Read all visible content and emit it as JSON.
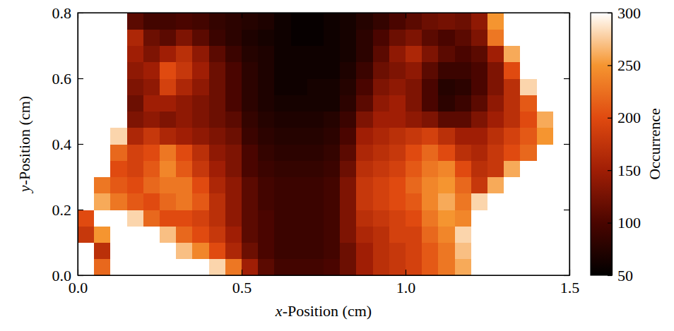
{
  "chart_data": {
    "type": "heatmap",
    "x_label": "x-Position (cm)",
    "y_label": "y-Position (cm)",
    "xlim": [
      0,
      1.5
    ],
    "ylim": [
      0,
      0.8
    ],
    "xticks": [
      {
        "value": 0,
        "label": "0.0"
      },
      0.5,
      {
        "value": 1,
        "label": "1.0"
      },
      1.5
    ],
    "yticks": [
      {
        "value": 0,
        "label": "0.0"
      },
      0.2,
      0.4,
      0.6,
      0.8
    ],
    "x_bins": [
      0,
      0.05,
      0.1,
      0.15,
      0.2,
      0.25,
      0.3,
      0.35,
      0.4,
      0.45,
      0.5,
      0.55,
      0.6,
      0.65,
      0.7,
      0.75,
      0.8,
      0.85,
      0.9,
      0.95,
      1.0,
      1.05,
      1.1,
      1.15,
      1.2,
      1.25,
      1.3,
      1.35,
      1.4,
      1.45,
      1.5
    ],
    "y_bins": [
      0,
      0.05,
      0.1,
      0.15,
      0.2,
      0.25,
      0.3,
      0.35,
      0.4,
      0.45,
      0.5,
      0.55,
      0.6,
      0.65,
      0.7,
      0.75,
      0.8
    ],
    "values": [
      [
        350,
        220,
        350,
        350,
        350,
        350,
        350,
        320,
        280,
        230,
        150,
        110,
        95,
        95,
        95,
        100,
        120,
        150,
        170,
        180,
        190,
        210,
        230,
        260,
        350,
        350,
        350,
        350,
        350,
        350
      ],
      [
        350,
        170,
        350,
        350,
        350,
        320,
        270,
        240,
        200,
        160,
        120,
        100,
        90,
        90,
        90,
        95,
        120,
        150,
        170,
        180,
        190,
        210,
        230,
        270,
        350,
        350,
        350,
        350,
        350,
        350
      ],
      [
        180,
        250,
        350,
        350,
        330,
        270,
        220,
        200,
        180,
        150,
        110,
        100,
        90,
        90,
        90,
        95,
        130,
        160,
        170,
        190,
        190,
        220,
        240,
        280,
        350,
        350,
        350,
        350,
        350,
        350
      ],
      [
        200,
        320,
        320,
        280,
        220,
        200,
        200,
        190,
        170,
        140,
        110,
        100,
        90,
        90,
        90,
        95,
        130,
        170,
        180,
        190,
        200,
        230,
        250,
        240,
        300,
        350,
        350,
        350,
        350,
        350
      ],
      [
        350,
        260,
        230,
        210,
        200,
        220,
        230,
        210,
        170,
        140,
        110,
        95,
        90,
        90,
        90,
        95,
        130,
        180,
        190,
        200,
        210,
        240,
        260,
        230,
        280,
        350,
        350,
        350,
        350,
        350
      ],
      [
        350,
        230,
        210,
        200,
        220,
        230,
        230,
        200,
        160,
        140,
        110,
        95,
        90,
        90,
        90,
        95,
        130,
        180,
        190,
        200,
        220,
        240,
        250,
        220,
        180,
        260,
        350,
        350,
        350,
        350
      ],
      [
        350,
        300,
        200,
        190,
        210,
        240,
        210,
        180,
        150,
        130,
        100,
        90,
        85,
        85,
        85,
        90,
        120,
        170,
        180,
        190,
        210,
        230,
        240,
        200,
        170,
        180,
        260,
        350,
        350,
        350
      ],
      [
        350,
        350,
        220,
        190,
        200,
        230,
        200,
        170,
        140,
        130,
        100,
        85,
        80,
        80,
        80,
        85,
        110,
        160,
        170,
        180,
        200,
        220,
        200,
        170,
        160,
        180,
        200,
        220,
        300,
        350
      ],
      [
        350,
        350,
        280,
        160,
        180,
        160,
        150,
        140,
        130,
        120,
        90,
        80,
        75,
        75,
        75,
        80,
        100,
        150,
        160,
        170,
        180,
        190,
        170,
        150,
        150,
        170,
        190,
        210,
        250,
        350
      ],
      [
        350,
        350,
        350,
        130,
        140,
        130,
        140,
        130,
        120,
        110,
        85,
        75,
        70,
        70,
        70,
        75,
        90,
        130,
        150,
        150,
        140,
        130,
        110,
        110,
        130,
        150,
        170,
        200,
        260,
        350
      ],
      [
        350,
        350,
        350,
        120,
        150,
        150,
        140,
        130,
        120,
        100,
        80,
        70,
        65,
        65,
        65,
        65,
        80,
        110,
        140,
        150,
        130,
        100,
        80,
        90,
        110,
        140,
        170,
        210,
        350,
        350
      ],
      [
        350,
        350,
        350,
        130,
        140,
        190,
        160,
        140,
        120,
        100,
        80,
        70,
        60,
        60,
        65,
        65,
        75,
        100,
        130,
        140,
        130,
        100,
        75,
        80,
        100,
        130,
        170,
        280,
        350,
        350
      ],
      [
        350,
        350,
        350,
        140,
        150,
        200,
        180,
        150,
        120,
        100,
        80,
        70,
        60,
        60,
        60,
        60,
        70,
        90,
        120,
        130,
        140,
        110,
        90,
        90,
        100,
        130,
        200,
        350,
        350,
        350
      ],
      [
        350,
        350,
        350,
        150,
        130,
        150,
        170,
        140,
        110,
        90,
        75,
        70,
        60,
        60,
        60,
        60,
        65,
        80,
        110,
        140,
        160,
        130,
        110,
        100,
        110,
        150,
        260,
        350,
        350,
        350
      ],
      [
        350,
        350,
        350,
        160,
        120,
        110,
        130,
        110,
        90,
        80,
        70,
        65,
        60,
        55,
        55,
        60,
        65,
        80,
        100,
        120,
        130,
        110,
        100,
        110,
        130,
        230,
        350,
        350,
        350,
        350
      ],
      [
        350,
        350,
        350,
        110,
        95,
        95,
        100,
        95,
        85,
        80,
        75,
        70,
        60,
        55,
        55,
        60,
        65,
        75,
        85,
        100,
        110,
        120,
        125,
        120,
        140,
        250,
        350,
        350,
        350,
        350
      ]
    ],
    "colorbar": {
      "label": "Occurrence",
      "range": [
        50,
        300
      ],
      "ticks": [
        50,
        100,
        150,
        200,
        250,
        300
      ]
    }
  }
}
